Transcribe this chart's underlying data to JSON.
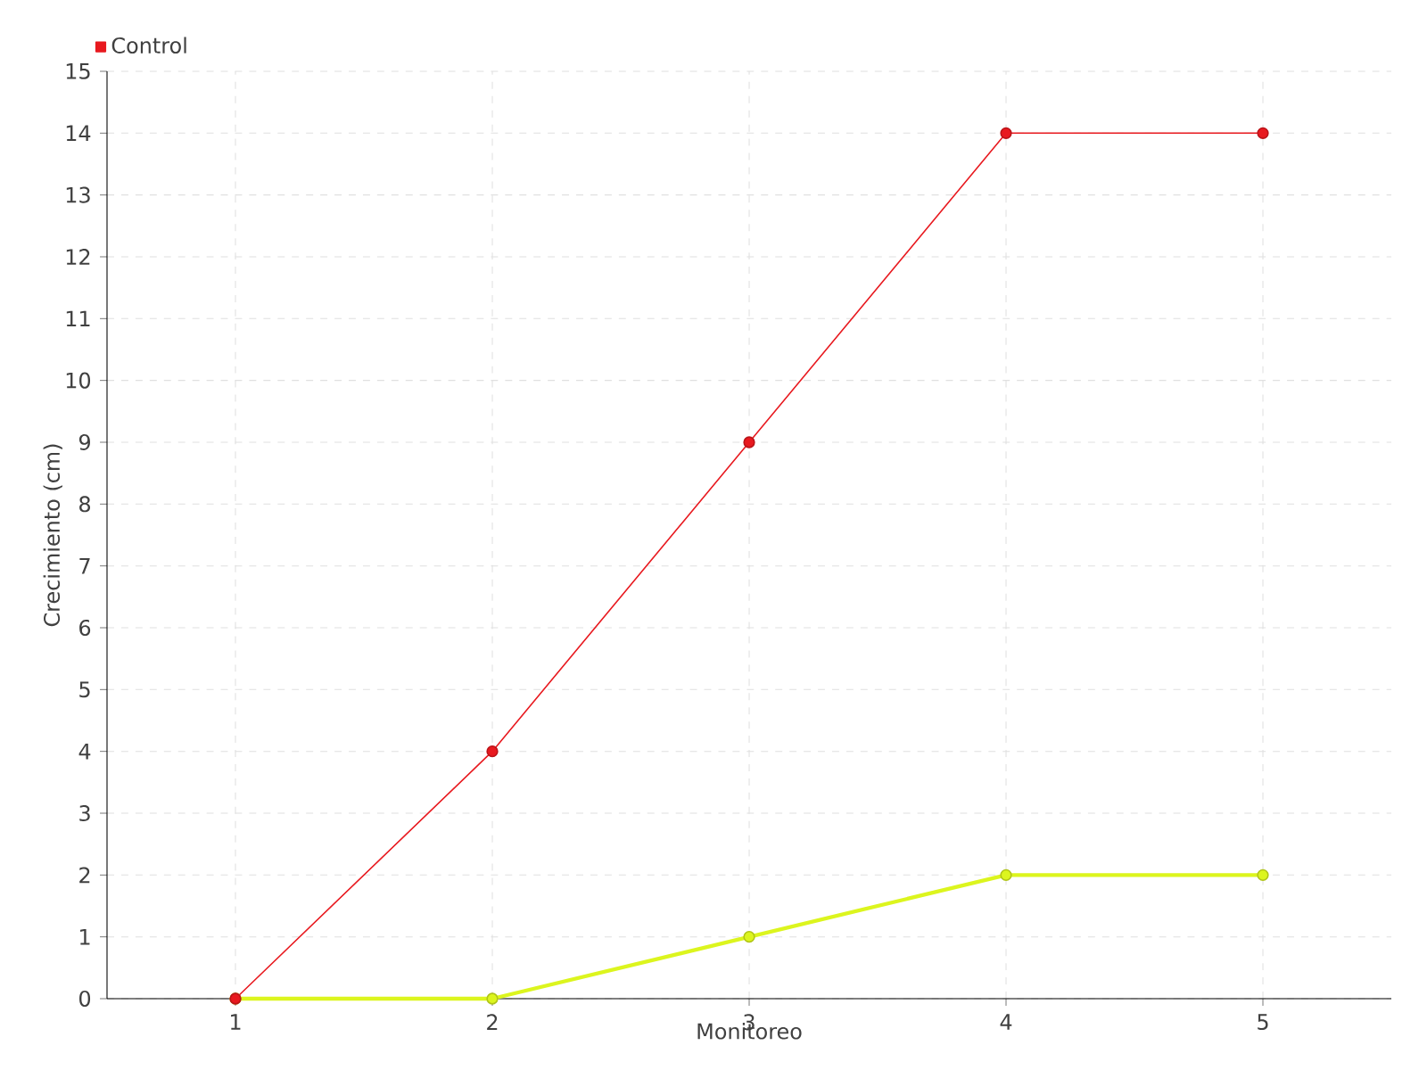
{
  "chart_data": {
    "type": "line",
    "xlabel": "Monitoreo",
    "ylabel": "Crecimiento (cm)",
    "categories": [
      "1",
      "2",
      "3",
      "4",
      "5"
    ],
    "series": [
      {
        "color": "#dcf51e",
        "values": [
          0,
          0,
          1,
          2,
          2
        ]
      },
      {
        "name": "Control",
        "color": "#e8191f",
        "values": [
          0,
          4,
          9,
          14,
          14
        ]
      }
    ],
    "ylim": [
      0,
      15
    ],
    "yticks": [
      0,
      1,
      2,
      3,
      4,
      5,
      6,
      7,
      8,
      9,
      10,
      11,
      12,
      13,
      14,
      15
    ],
    "grid": true,
    "legend": "top left",
    "marker": "circle",
    "line_style": "solid"
  }
}
